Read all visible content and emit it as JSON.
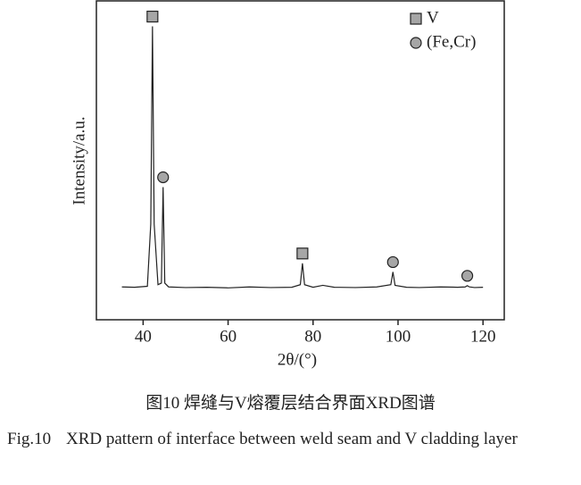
{
  "chart_data": {
    "type": "line",
    "xlabel": "2θ/(°)",
    "ylabel": "Intensity/a.u.",
    "x": [
      35,
      38,
      41,
      41.8,
      42.2,
      42.6,
      43.5,
      44.3,
      44.7,
      45.1,
      46,
      50,
      55,
      60,
      65,
      70,
      75,
      77,
      77.5,
      78,
      80,
      82.3,
      85,
      90,
      95,
      98.3,
      98.8,
      99.3,
      102,
      105,
      110,
      114,
      115.8,
      116.3,
      116.8,
      118,
      120
    ],
    "series": [
      {
        "color": "#222222",
        "values": [
          10.3,
          10.2,
          10.5,
          30,
          92,
          30,
          11,
          11.5,
          41.6,
          11.5,
          10.3,
          10.1,
          10.2,
          10,
          10.3,
          10.1,
          10.2,
          11,
          17.7,
          11,
          10.2,
          10.8,
          10.2,
          10.1,
          10.3,
          11,
          15,
          10.8,
          10.2,
          10.1,
          10.3,
          10.2,
          10.3,
          10.7,
          10.3,
          10.1,
          10.2
        ]
      }
    ],
    "xlim": [
      29,
      125
    ],
    "ylim": [
      0,
      100
    ],
    "xticks": [
      40,
      60,
      80,
      100,
      120
    ],
    "phases": [
      {
        "name": "V",
        "marker": "square",
        "color": "#a6a6a6",
        "x": [
          42.2,
          77.5
        ]
      },
      {
        "name": "(Fe,Cr)",
        "marker": "circle",
        "color": "#a6a6a6",
        "x": [
          44.7,
          98.8,
          116.3
        ]
      }
    ]
  },
  "caption_cn": "图10  焊缝与V熔覆层结合界面XRD图谱",
  "caption_en": {
    "label": "Fig.10",
    "text": "XRD pattern of interface between weld seam and V cladding layer"
  }
}
